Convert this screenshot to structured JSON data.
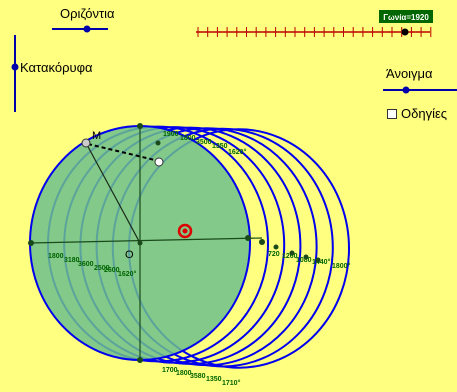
{
  "sliders": {
    "horizontal": {
      "label": "Οριζόντια"
    },
    "vertical": {
      "label": "Κατακόρυφα"
    },
    "opening": {
      "label": "Άνοιγμα"
    },
    "angle": {
      "label": "Γωνία=1920"
    }
  },
  "checkbox": {
    "label": "Οδηγίες",
    "checked": false
  },
  "points": {
    "m": "M",
    "o": "O"
  },
  "angle_labels_left": [
    "1800",
    "3180",
    "3600",
    "2500",
    "2600",
    "1620°"
  ],
  "angle_labels_right": [
    "720",
    "1260",
    "1080",
    "1440°",
    "1800°"
  ],
  "angle_labels_bottom": [
    "1700",
    "1800",
    "3580",
    "1350",
    "1710°"
  ],
  "angle_labels_top": [
    "1900",
    "1800",
    "3500",
    "1350",
    "1620°"
  ],
  "colors": {
    "background": "#ffff80",
    "circle_stroke": "#0000ee",
    "disk_fill": "#6cc08c",
    "slider_color": "#0000aa",
    "angle_slider": "#bb0000",
    "angle_badge": "#006600",
    "label_green": "#006400",
    "highlight_point": "#dd0000"
  }
}
